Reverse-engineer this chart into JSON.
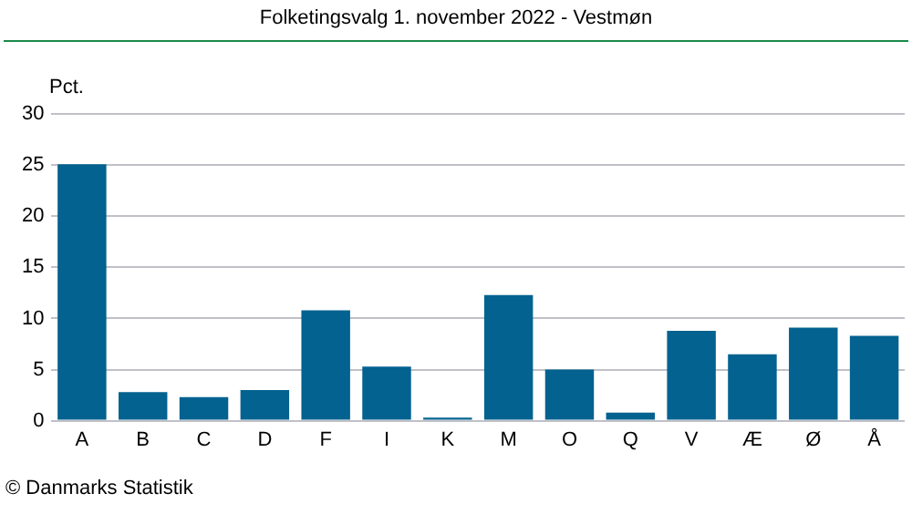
{
  "chart_data": {
    "type": "bar",
    "title": "Folketingsvalg 1. november 2022 - Vestmøn",
    "ylabel": "Pct.",
    "categories": [
      "A",
      "B",
      "C",
      "D",
      "F",
      "I",
      "K",
      "M",
      "O",
      "Q",
      "V",
      "Æ",
      "Ø",
      "Å"
    ],
    "values": [
      25.1,
      2.8,
      2.3,
      3.0,
      10.8,
      5.3,
      0.3,
      12.3,
      5.0,
      0.8,
      8.8,
      6.5,
      9.1,
      8.3
    ],
    "color": "#03628f",
    "ylim": [
      0,
      30
    ],
    "yticks": [
      0,
      5,
      10,
      15,
      20,
      25,
      30
    ],
    "grid": "y",
    "annotations": [
      "© Danmarks Statistik"
    ]
  }
}
